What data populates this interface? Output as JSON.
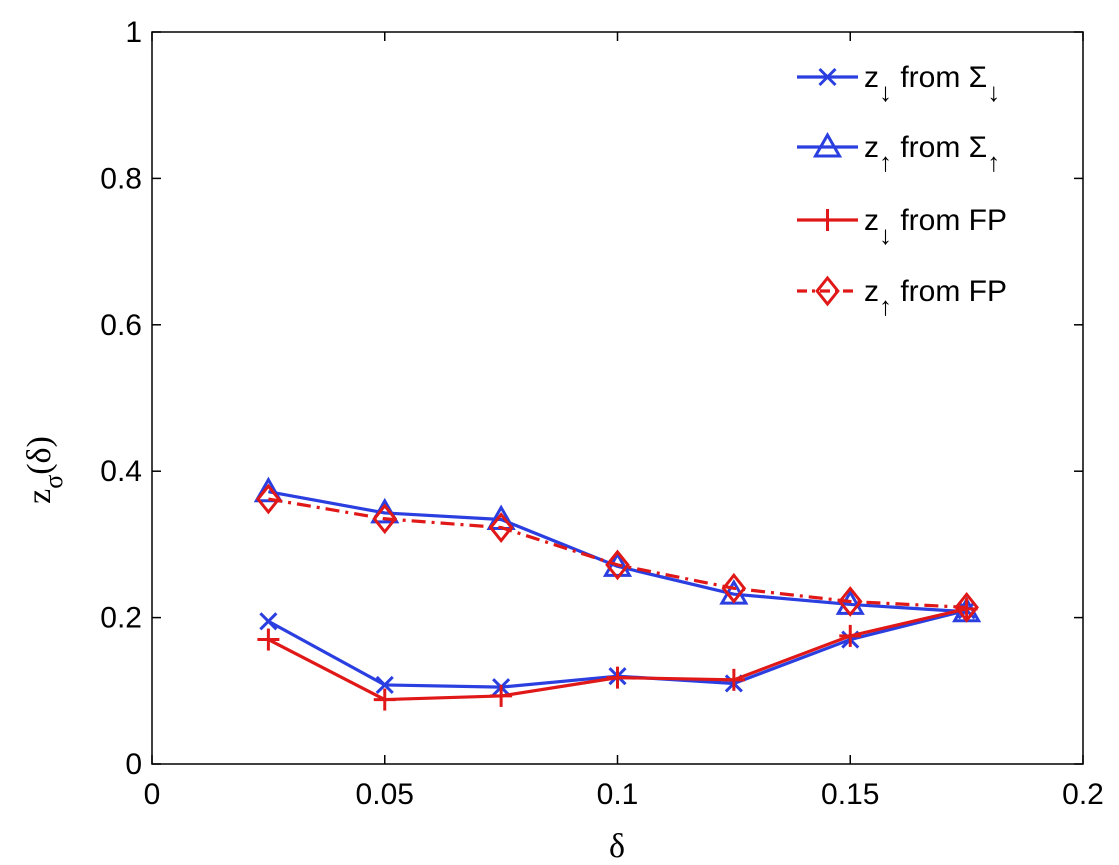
{
  "chart_data": {
    "type": "line",
    "xlabel": "δ",
    "ylabel_main": "z",
    "ylabel_sub": "σ",
    "ylabel_arg": "(δ)",
    "xlim": [
      0,
      0.2
    ],
    "ylim": [
      0,
      1
    ],
    "xticks": [
      0,
      0.05,
      0.1,
      0.15,
      0.2
    ],
    "xtick_labels": [
      "0",
      "0.05",
      "0.1",
      "0.15",
      "0.2"
    ],
    "yticks": [
      0,
      0.2,
      0.4,
      0.6,
      0.8,
      1
    ],
    "ytick_labels": [
      "0",
      "0.2",
      "0.4",
      "0.6",
      "0.8",
      "1"
    ],
    "grid": false,
    "legend_position": "top-right",
    "x": [
      0.025,
      0.05,
      0.075,
      0.1,
      0.125,
      0.15,
      0.175
    ],
    "series": [
      {
        "label_main": "z",
        "label_sub": "↓",
        "label_text": " from Σ",
        "label_text_sub": "↓",
        "values": [
          0.195,
          0.108,
          0.105,
          0.12,
          0.11,
          0.17,
          0.21
        ],
        "color": "#2b3fe0",
        "marker": "x",
        "dash": "solid"
      },
      {
        "label_main": "z",
        "label_sub": "↑",
        "label_text": " from Σ",
        "label_text_sub": "↑",
        "values": [
          0.372,
          0.343,
          0.334,
          0.27,
          0.232,
          0.218,
          0.208
        ],
        "color": "#2b3fe0",
        "marker": "triangle",
        "dash": "solid"
      },
      {
        "label_main": "z",
        "label_sub": "↓",
        "label_text": " from FP",
        "label_text_sub": "",
        "values": [
          0.17,
          0.088,
          0.093,
          0.118,
          0.115,
          0.175,
          0.212
        ],
        "color": "#e01818",
        "marker": "plus",
        "dash": "solid"
      },
      {
        "label_main": "z",
        "label_sub": "↑",
        "label_text": " from FP",
        "label_text_sub": "",
        "values": [
          0.362,
          0.335,
          0.323,
          0.272,
          0.24,
          0.222,
          0.214
        ],
        "color": "#e01818",
        "marker": "diamond",
        "dash": "dashdot"
      }
    ]
  }
}
